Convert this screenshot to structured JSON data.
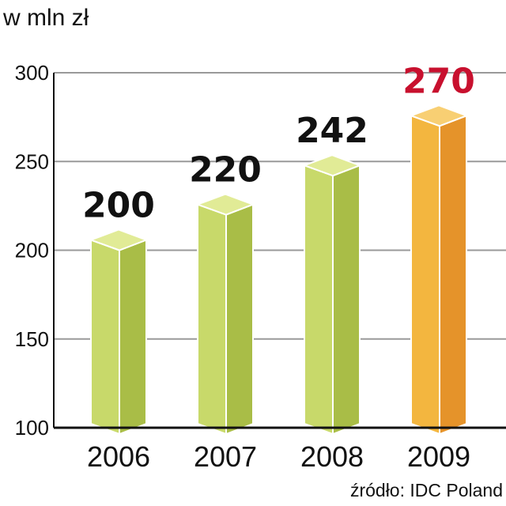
{
  "chart_data": {
    "type": "bar",
    "unit_label": "w mln zł",
    "categories": [
      "2006",
      "2007",
      "2008",
      "2009"
    ],
    "values": [
      200,
      220,
      242,
      270
    ],
    "value_labels": [
      "200",
      "220",
      "242",
      "270"
    ],
    "ylim": [
      100,
      300
    ],
    "yticks": [
      100,
      150,
      200,
      250,
      300
    ],
    "grid": true,
    "source": "źródło: IDC Poland",
    "colors": {
      "bar_front": [
        "#c8d96a",
        "#c8d96a",
        "#c8d96a",
        "#f3b63f"
      ],
      "bar_side": [
        "#a9bd47",
        "#a9bd47",
        "#a9bd47",
        "#e5932a"
      ],
      "bar_top": [
        "#e1eb96",
        "#e1eb96",
        "#e1eb96",
        "#f8cf73"
      ],
      "value_text": [
        "#111111",
        "#111111",
        "#111111",
        "#c8102e"
      ],
      "grid": "#9a9a9a",
      "axis": "#111111"
    }
  }
}
